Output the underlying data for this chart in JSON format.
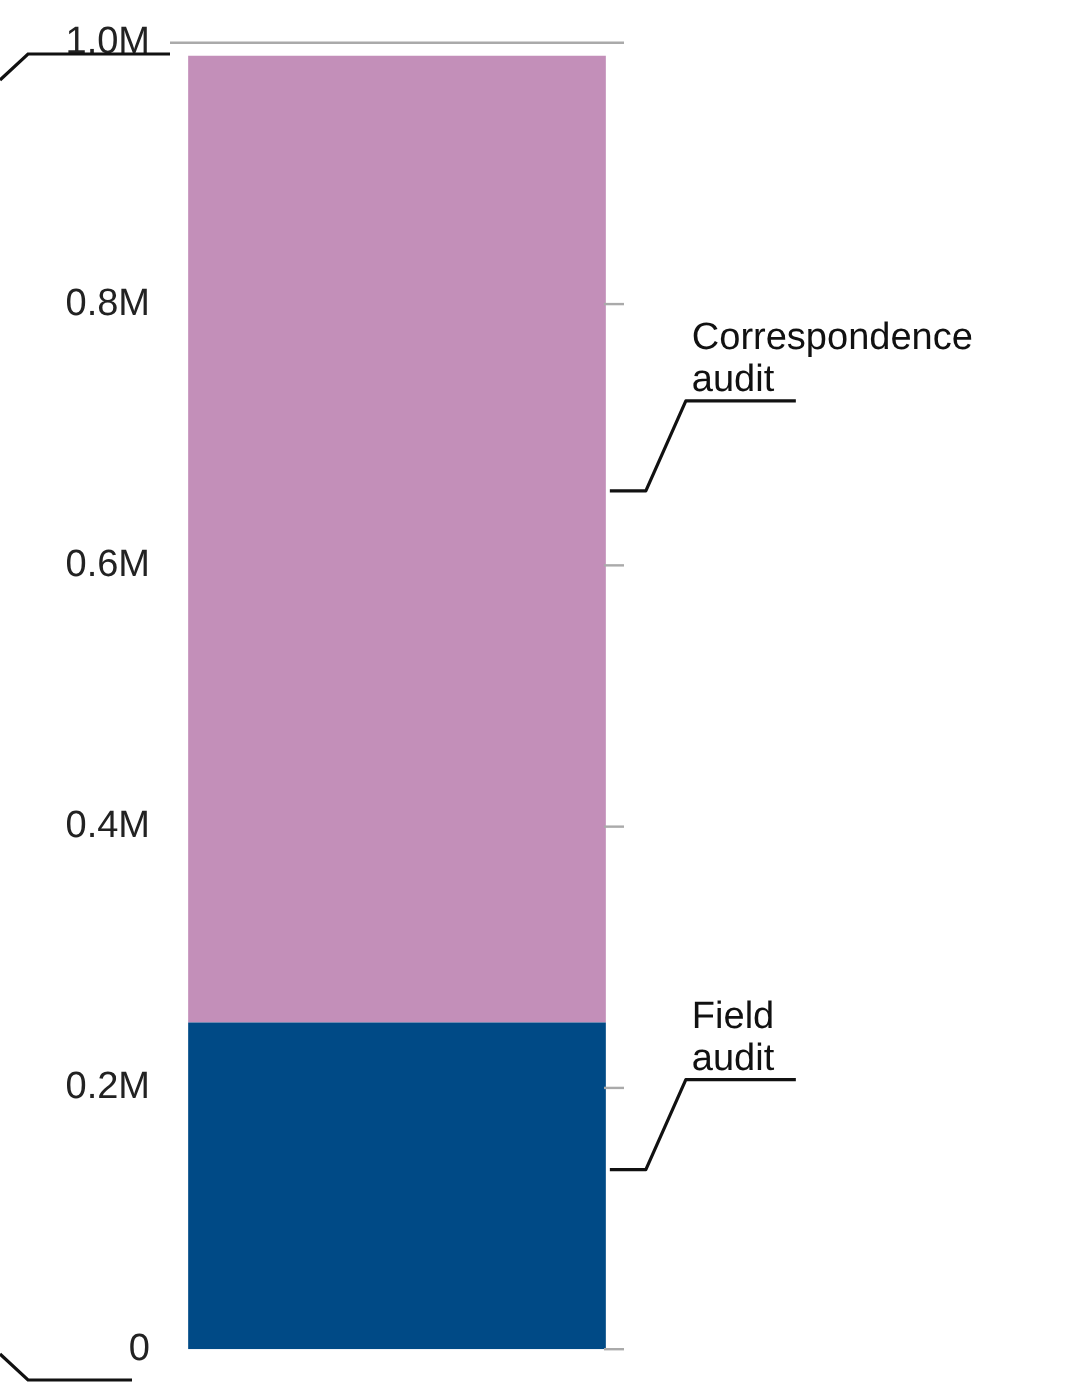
{
  "chart_data": {
    "type": "bar",
    "stacked": true,
    "categories": [
      null
    ],
    "series": [
      {
        "name": "Field audit",
        "color": "#004a86",
        "values": [
          250000
        ]
      },
      {
        "name": "Correspondence audit",
        "color": "#c38fb9",
        "values": [
          740000
        ]
      }
    ],
    "ylim": [
      0,
      1000000
    ],
    "yticks": [
      {
        "value": 0,
        "label": "0"
      },
      {
        "value": 200000,
        "label": "0.2M"
      },
      {
        "value": 400000,
        "label": "0.4M"
      },
      {
        "value": 600000,
        "label": "0.6M"
      },
      {
        "value": 800000,
        "label": "0.8M"
      },
      {
        "value": 1000000,
        "label": "1.0M"
      }
    ],
    "tick_labels": "y",
    "grid": false,
    "legend": false
  }
}
